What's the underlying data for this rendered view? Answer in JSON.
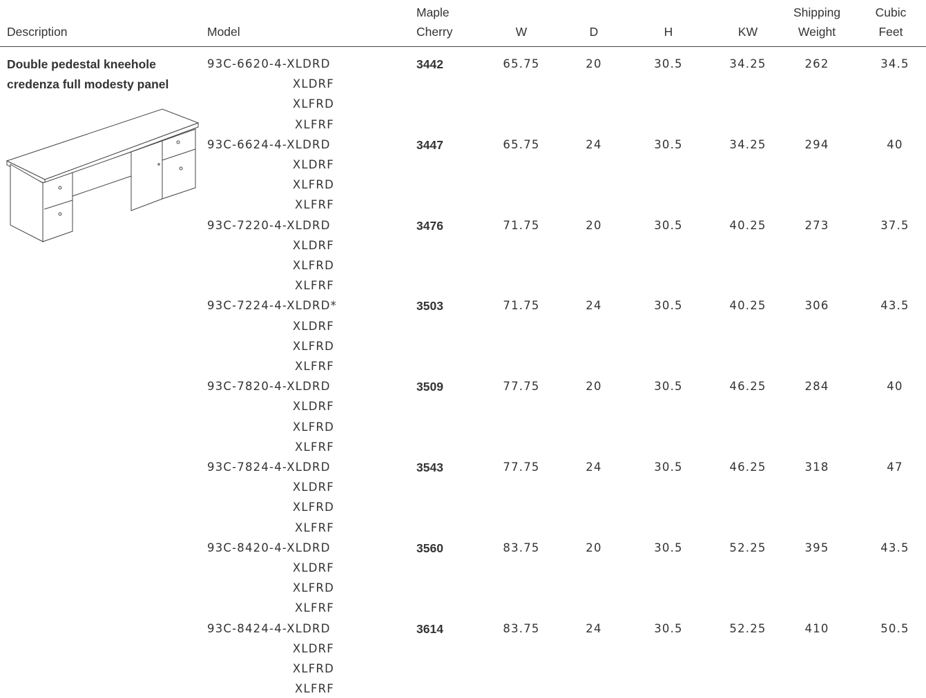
{
  "table": {
    "columns": [
      [
        "Description"
      ],
      [
        "Model"
      ],
      [
        "Maple",
        "Cherry"
      ],
      [
        "W"
      ],
      [
        "D"
      ],
      [
        "H"
      ],
      [
        "KW"
      ],
      [
        "Shipping",
        "Weight"
      ],
      [
        "Cubic",
        "Feet"
      ]
    ],
    "description": [
      "Double pedestal kneehole",
      "credenza full modesty panel"
    ],
    "rows": [
      {
        "models": [
          "93C-6620-4-XLDRD",
          "XLDRF",
          "XLFRD",
          "XLFRF"
        ],
        "values": [
          3442,
          65.75,
          20,
          30.5,
          34.25,
          262,
          34.5
        ]
      },
      {
        "models": [
          "93C-6624-4-XLDRD",
          "XLDRF",
          "XLFRD",
          "XLFRF"
        ],
        "values": [
          3447,
          65.75,
          24,
          30.5,
          34.25,
          294,
          40
        ]
      },
      {
        "models": [
          "93C-7220-4-XLDRD",
          "XLDRF",
          "XLFRD",
          "XLFRF"
        ],
        "values": [
          3476,
          71.75,
          20,
          30.5,
          40.25,
          273,
          37.5
        ]
      },
      {
        "models": [
          "93C-7224-4-XLDRD*",
          "XLDRF",
          "XLFRD",
          "XLFRF"
        ],
        "values": [
          3503,
          71.75,
          24,
          30.5,
          40.25,
          306,
          43.5
        ]
      },
      {
        "models": [
          "93C-7820-4-XLDRD",
          "XLDRF",
          "XLFRD",
          "XLFRF"
        ],
        "values": [
          3509,
          77.75,
          20,
          30.5,
          46.25,
          284,
          40
        ]
      },
      {
        "models": [
          "93C-7824-4-XLDRD",
          "XLDRF",
          "XLFRD",
          "XLFRF"
        ],
        "values": [
          3543,
          77.75,
          24,
          30.5,
          46.25,
          318,
          47
        ]
      },
      {
        "models": [
          "93C-8420-4-XLDRD",
          "XLDRF",
          "XLFRD",
          "XLFRF"
        ],
        "values": [
          3560,
          83.75,
          20,
          30.5,
          52.25,
          395,
          43.5
        ]
      },
      {
        "models": [
          "93C-8424-4-XLDRD",
          "XLDRF",
          "XLFRD",
          "XLFRF"
        ],
        "values": [
          3614,
          83.75,
          24,
          30.5,
          52.25,
          410,
          50.5
        ]
      }
    ]
  }
}
